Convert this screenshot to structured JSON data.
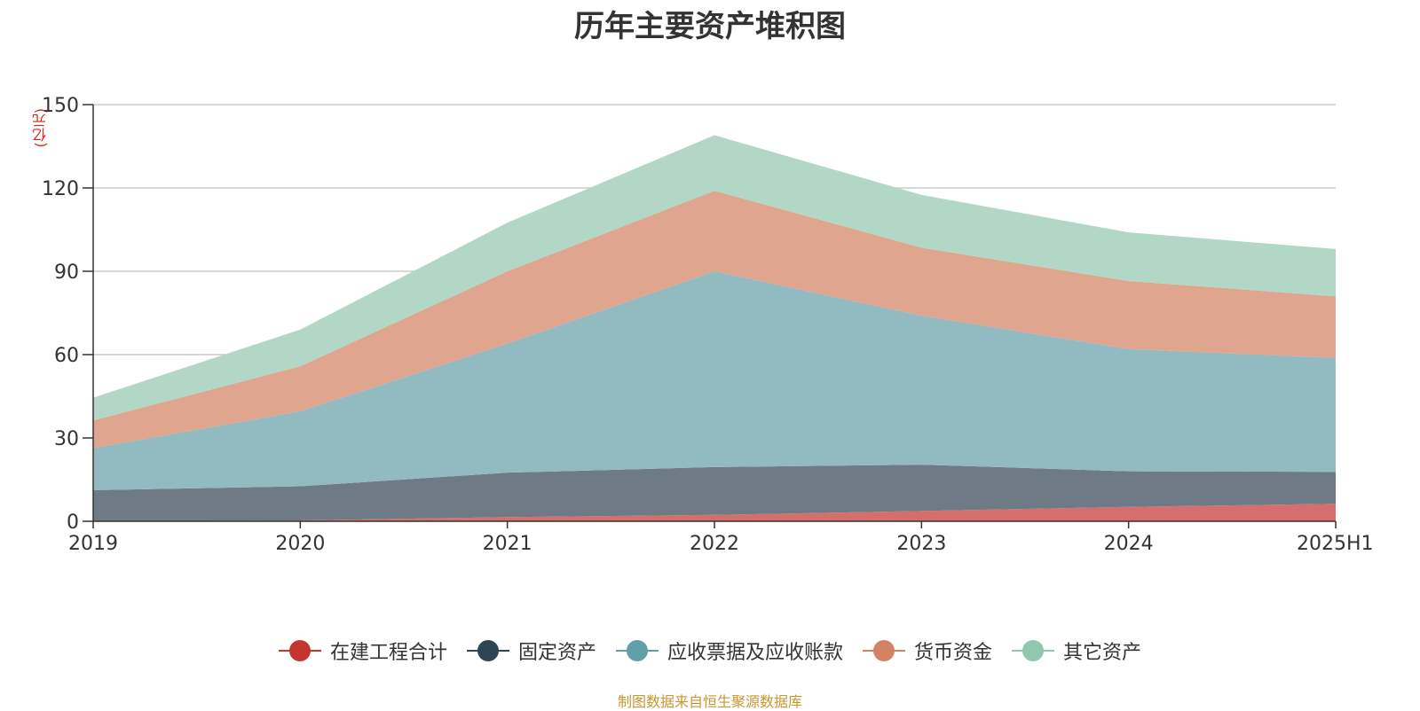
{
  "chart_data": {
    "type": "area",
    "stacked": true,
    "title": "历年主要资产堆积图",
    "y_unit": "(亿元)",
    "categories": [
      "2019",
      "2020",
      "2021",
      "2022",
      "2023",
      "2024",
      "2025H1"
    ],
    "ylim": [
      0,
      150
    ],
    "yticks": [
      0,
      30,
      60,
      90,
      120,
      150
    ],
    "grid": true,
    "legend_position": "bottom",
    "series": [
      {
        "name": "在建工程合计",
        "color": "#c23531",
        "area_color": "#d66e6c",
        "values": [
          0,
          0.3,
          1.5,
          2.3,
          3.7,
          5.2,
          6.3
        ]
      },
      {
        "name": "固定资产",
        "color": "#2f4554",
        "area_color": "#6e7b86",
        "values": [
          11.2,
          12.3,
          16.0,
          17.2,
          16.7,
          12.8,
          11.5
        ]
      },
      {
        "name": "应收票据及应收账款",
        "color": "#61a0a8",
        "area_color": "#91bac1",
        "values": [
          15.1,
          27.0,
          46.5,
          70.5,
          53.6,
          44.0,
          41.0
        ]
      },
      {
        "name": "货币资金",
        "color": "#d48265",
        "area_color": "#e0a58e",
        "values": [
          10.0,
          16.2,
          26.0,
          29.0,
          24.5,
          24.5,
          22.2
        ]
      },
      {
        "name": "其它资产",
        "color": "#91c7ae",
        "area_color": "#b2d7c6",
        "values": [
          8.2,
          13.2,
          17.5,
          20.0,
          19.0,
          17.5,
          17.0
        ]
      }
    ]
  },
  "source_note": "制图数据来自恒生聚源数据库"
}
